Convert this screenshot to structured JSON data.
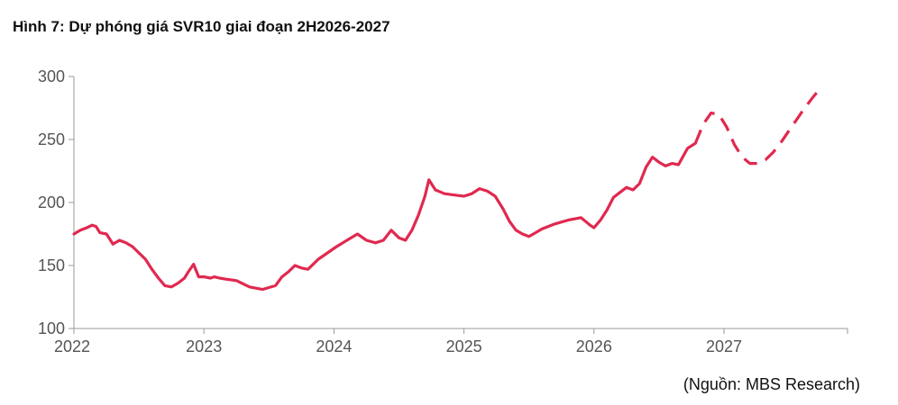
{
  "title": "Hình 7: Dự phóng giá SVR10 giai đoạn 2H2026-2027",
  "source": "(Nguồn: MBS Research)",
  "chart_data": {
    "type": "line",
    "title": "Hình 7: Dự phóng giá SVR10 giai đoạn 2H2026-2027",
    "xlabel": "",
    "ylabel": "",
    "ylim": [
      100,
      300
    ],
    "xlim": [
      2022.0,
      2027.95
    ],
    "y_ticks": [
      100,
      150,
      200,
      250,
      300
    ],
    "x_ticks": [
      {
        "value": 2022,
        "label": "2022"
      },
      {
        "value": 2023,
        "label": "2023"
      },
      {
        "value": 2024,
        "label": "2024"
      },
      {
        "value": 2025,
        "label": "2025"
      },
      {
        "value": 2026,
        "label": "2026"
      },
      {
        "value": 2027,
        "label": "2027"
      }
    ],
    "grid": false,
    "legend": "none",
    "series": [
      {
        "style": "solid",
        "color": "#e0294f",
        "x": [
          2022.0,
          2022.05,
          2022.1,
          2022.14,
          2022.17,
          2022.2,
          2022.25,
          2022.3,
          2022.35,
          2022.4,
          2022.45,
          2022.5,
          2022.55,
          2022.6,
          2022.65,
          2022.7,
          2022.75,
          2022.8,
          2022.85,
          2022.88,
          2022.92,
          2022.96,
          2023.0,
          2023.05,
          2023.08,
          2023.12,
          2023.18,
          2023.25,
          2023.35,
          2023.45,
          2023.55,
          2023.6,
          2023.65,
          2023.7,
          2023.75,
          2023.8,
          2023.88,
          2023.95,
          2024.02,
          2024.1,
          2024.18,
          2024.25,
          2024.32,
          2024.38,
          2024.44,
          2024.5,
          2024.55,
          2024.6,
          2024.65,
          2024.7,
          2024.73,
          2024.78,
          2024.85,
          2024.92,
          2025.0,
          2025.06,
          2025.12,
          2025.18,
          2025.24,
          2025.3,
          2025.35,
          2025.4,
          2025.45,
          2025.5,
          2025.55,
          2025.6,
          2025.7,
          2025.8,
          2025.9,
          2025.97,
          2026.0,
          2026.05,
          2026.1,
          2026.15,
          2026.2,
          2026.25,
          2026.3,
          2026.35,
          2026.4,
          2026.45,
          2026.5,
          2026.55,
          2026.6,
          2026.65,
          2026.72,
          2026.78
        ],
        "y": [
          175,
          178,
          180,
          182,
          181,
          176,
          175,
          167,
          170,
          168,
          165,
          160,
          155,
          147,
          140,
          134,
          133,
          136,
          140,
          145,
          151,
          141,
          141,
          140,
          141,
          140,
          139,
          138,
          133,
          131,
          134,
          141,
          145,
          150,
          148,
          147,
          155,
          160,
          165,
          170,
          175,
          170,
          168,
          170,
          178,
          172,
          170,
          178,
          190,
          205,
          218,
          210,
          207,
          206,
          205,
          207,
          211,
          209,
          205,
          195,
          185,
          178,
          175,
          173,
          176,
          179,
          183,
          186,
          188,
          182,
          180,
          186,
          194,
          204,
          208,
          212,
          210,
          215,
          228,
          236,
          232,
          229,
          231,
          230,
          243,
          247
        ]
      },
      {
        "style": "dashed",
        "color": "#e0294f",
        "x": [
          2026.78,
          2026.84,
          2026.9,
          2026.96,
          2027.02,
          2027.08,
          2027.14,
          2027.2,
          2027.26,
          2027.32,
          2027.38,
          2027.44,
          2027.5,
          2027.56,
          2027.62,
          2027.68,
          2027.72
        ],
        "y": [
          247,
          262,
          271,
          270,
          260,
          246,
          236,
          231,
          231,
          234,
          240,
          248,
          257,
          266,
          275,
          283,
          288
        ]
      }
    ]
  }
}
